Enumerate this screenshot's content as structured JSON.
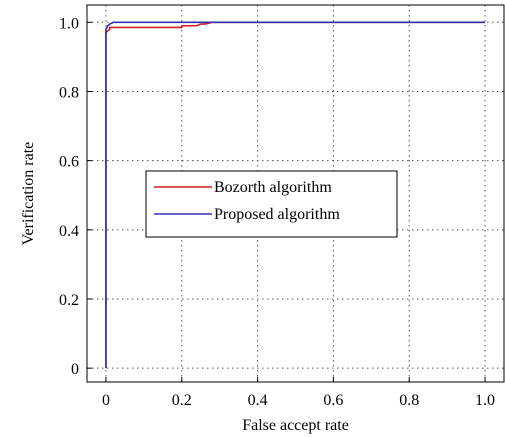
{
  "chart_data": {
    "type": "line",
    "xlabel": "False accept rate",
    "ylabel": "Verification rate",
    "xlim": [
      -0.05,
      1.05
    ],
    "ylim": [
      -0.04,
      1.05
    ],
    "x_ticks": [
      0,
      0.2,
      0.4,
      0.6,
      0.8,
      1.0
    ],
    "x_tick_labels": [
      "0",
      "0.2",
      "0.4",
      "0.6",
      "0.8",
      "1.0"
    ],
    "y_ticks": [
      0,
      0.2,
      0.4,
      0.6,
      0.8,
      1.0
    ],
    "y_tick_labels": [
      "0",
      "0.2",
      "0.4",
      "0.6",
      "0.8",
      "1.0"
    ],
    "grid": true,
    "legend_position": "center-left",
    "series": [
      {
        "name": "Bozorth algorithm",
        "color": "#d42020",
        "x": [
          0,
          0,
          0.005,
          0.01,
          0.01,
          0.05,
          0.2,
          0.2,
          0.24,
          0.25,
          0.26,
          0.27,
          0.28,
          1.0
        ],
        "y": [
          0,
          0.97,
          0.975,
          0.98,
          0.985,
          0.985,
          0.985,
          0.99,
          0.99,
          0.995,
          0.995,
          0.997,
          1.0,
          1.0
        ]
      },
      {
        "name": "Proposed algorithm",
        "color": "#3030b0",
        "x": [
          0,
          0,
          0.005,
          0.01,
          0.02,
          1.0
        ],
        "y": [
          0,
          0.98,
          0.99,
          0.995,
          1.0,
          1.0
        ]
      }
    ]
  }
}
